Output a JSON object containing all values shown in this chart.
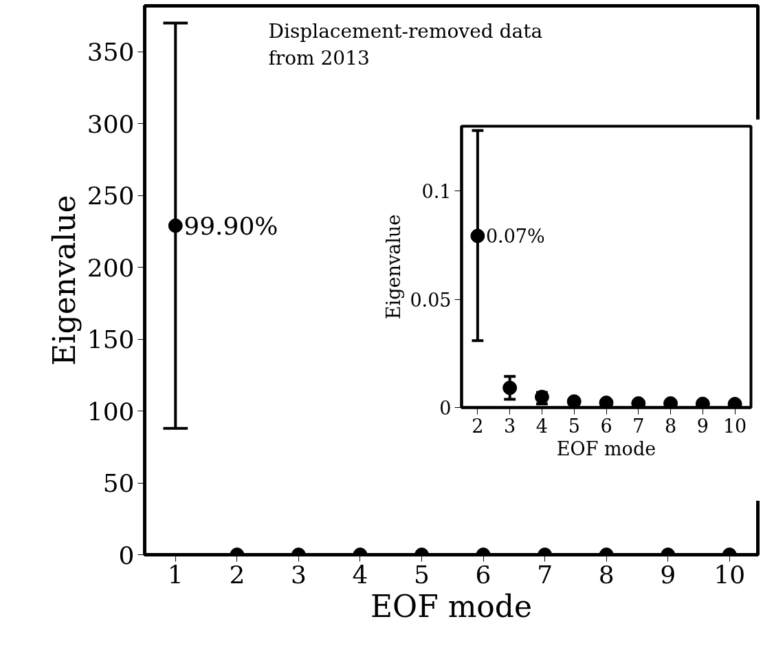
{
  "chart_data": [
    {
      "type": "scatter",
      "xlabel": "EOF mode",
      "ylabel": "Eigenvalue",
      "x": [
        1,
        2,
        3,
        4,
        5,
        6,
        7,
        8,
        9,
        10
      ],
      "series": [
        {
          "color": "#000000",
          "values": [
            229,
            0,
            0,
            0,
            0,
            0,
            0,
            0,
            0,
            0
          ],
          "errors": [
            [
              88,
              370
            ],
            null,
            null,
            null,
            null,
            null,
            null,
            null,
            null,
            null
          ]
        }
      ],
      "xlim": [
        0.5,
        10.46
      ],
      "ylim": [
        0,
        382
      ],
      "xticks": [
        1,
        2,
        3,
        4,
        5,
        6,
        7,
        8,
        9,
        10
      ],
      "yticks": [
        0,
        50,
        100,
        150,
        200,
        250,
        300,
        350
      ],
      "marker": "circle",
      "grid": false,
      "annotations": [
        "Displacement-removed data\nfrom 2013",
        {
          "text": "99.90%",
          "x": 1,
          "y": 229
        }
      ]
    },
    {
      "type": "scatter",
      "xlabel": "EOF mode",
      "ylabel": "Eigenvalue",
      "x": [
        2,
        3,
        4,
        5,
        6,
        7,
        8,
        9,
        10
      ],
      "series": [
        {
          "color": "#000000",
          "values": [
            0.0793,
            0.0091,
            0.0049,
            0.0028,
            0.0022,
            0.0019,
            0.0019,
            0.0017,
            0.0016
          ],
          "errors": [
            [
              0.0309,
              0.128
            ],
            [
              0.0038,
              0.0144
            ],
            [
              0.0017,
              0.007
            ],
            null,
            null,
            null,
            null,
            null,
            null
          ]
        }
      ],
      "xlim": [
        1.5,
        10.5
      ],
      "ylim": [
        0,
        0.13
      ],
      "xticks": [
        2,
        3,
        4,
        5,
        6,
        7,
        8,
        9,
        10
      ],
      "yticks": [
        0,
        0.05,
        0.1
      ],
      "marker": "circle",
      "grid": false,
      "annotations": [
        {
          "text": "0.07%",
          "x": 2,
          "y": 0.0793
        }
      ]
    }
  ]
}
